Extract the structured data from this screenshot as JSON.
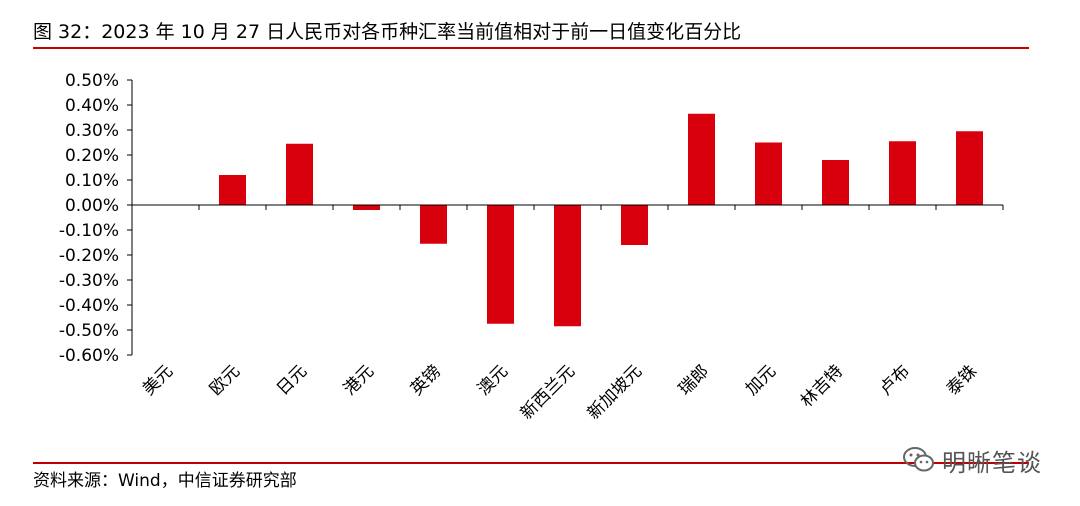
{
  "header": {
    "title": "图 32：2023 年 10 月 27 日人民币对各币种汇率当前值相对于前一日值变化百分比"
  },
  "footer": {
    "source": "资料来源：Wind，中信证券研究部"
  },
  "watermark": {
    "text": "明晰笔谈",
    "icon": "wechat-icon"
  },
  "colors": {
    "bar": "#d9000d",
    "rule": "#c00000"
  },
  "chart_data": {
    "type": "bar",
    "categories": [
      "美元",
      "欧元",
      "日元",
      "港元",
      "英镑",
      "澳元",
      "新西兰元",
      "新加坡元",
      "瑞郎",
      "加元",
      "林吉特",
      "卢布",
      "泰铢"
    ],
    "values": [
      0.0,
      0.12,
      0.245,
      -0.02,
      -0.155,
      -0.475,
      -0.485,
      -0.16,
      0.365,
      0.25,
      0.18,
      0.255,
      0.295
    ],
    "yticks": [
      "0.50%",
      "0.40%",
      "0.30%",
      "0.20%",
      "0.10%",
      "0.00%",
      "-0.10%",
      "-0.20%",
      "-0.30%",
      "-0.40%",
      "-0.50%",
      "-0.60%"
    ],
    "ylim": [
      -0.6,
      0.5
    ],
    "unit": "%",
    "grid": false,
    "legend": "none"
  }
}
